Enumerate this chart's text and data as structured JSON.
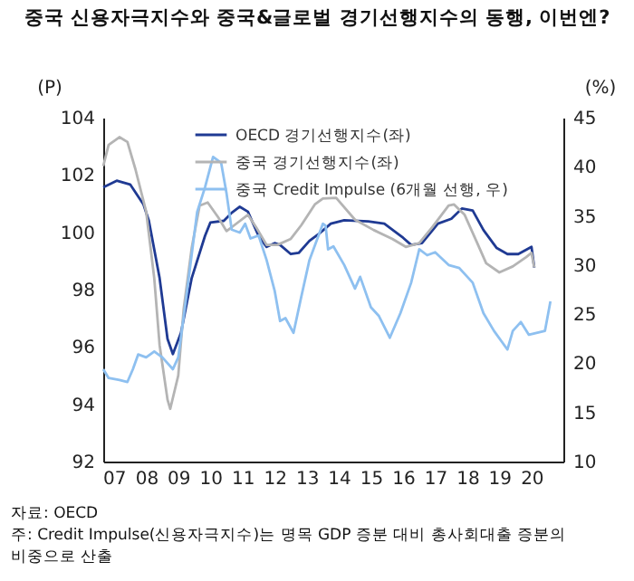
{
  "chart_data": {
    "type": "line",
    "title": "중국 신용자극지수와 중국&글로벌 경기선행지수의 동행, 이번엔?",
    "ylabel": "(P)",
    "y2label": "(%)",
    "xlim": [
      "2007-03-01",
      "2021-06-28"
    ],
    "xticks": [
      {
        "value": "2007-07",
        "label": "07"
      },
      {
        "value": "2008-07",
        "label": "08"
      },
      {
        "value": "2009-07",
        "label": "09"
      },
      {
        "value": "2010-07",
        "label": "10"
      },
      {
        "value": "2011-07",
        "label": "11"
      },
      {
        "value": "2012-07",
        "label": "12"
      },
      {
        "value": "2013-07",
        "label": "13"
      },
      {
        "value": "2014-07",
        "label": "14"
      },
      {
        "value": "2015-07",
        "label": "15"
      },
      {
        "value": "2016-07",
        "label": "16"
      },
      {
        "value": "2017-07",
        "label": "17"
      },
      {
        "value": "2018-07",
        "label": "18"
      },
      {
        "value": "2019-07",
        "label": "19"
      },
      {
        "value": "2020-07",
        "label": "20"
      }
    ],
    "ylim": [
      92,
      104
    ],
    "yticks": [
      92,
      94,
      96,
      98,
      100,
      102,
      104
    ],
    "y2lim": [
      10,
      45
    ],
    "y2ticks": [
      10,
      15,
      20,
      25,
      30,
      35,
      40,
      45
    ],
    "grid": false,
    "legend": "top",
    "line_style": "solid",
    "marker": "none",
    "series": [
      {
        "name": "OECD 경기선행지수(좌)",
        "color": "#1f3a93",
        "axis": "y",
        "x": [
          "2007-03",
          "2007-08",
          "2008-01",
          "2008-06",
          "2008-08",
          "2008-12",
          "2009-03",
          "2009-05",
          "2009-08",
          "2009-12",
          "2010-05",
          "2010-07",
          "2010-12",
          "2011-03",
          "2011-06",
          "2011-09",
          "2012-01",
          "2012-04",
          "2012-07",
          "2012-09",
          "2013-01",
          "2013-04",
          "2013-08",
          "2013-12",
          "2014-04",
          "2014-09",
          "2015-06",
          "2015-12",
          "2016-07",
          "2016-10",
          "2017-02",
          "2017-08",
          "2018-01",
          "2018-05",
          "2018-09",
          "2019-01",
          "2019-06",
          "2019-10",
          "2020-02",
          "2020-05",
          "2020-07",
          "2020-08"
        ],
        "values": [
          101.57,
          101.8,
          101.67,
          100.97,
          100.4,
          98.4,
          96.28,
          95.75,
          96.49,
          98.4,
          99.87,
          100.34,
          100.4,
          100.68,
          100.89,
          100.72,
          99.87,
          99.49,
          99.62,
          99.56,
          99.24,
          99.28,
          99.7,
          99.98,
          100.3,
          100.42,
          100.38,
          100.3,
          99.81,
          99.56,
          99.62,
          100.3,
          100.47,
          100.83,
          100.76,
          100.08,
          99.45,
          99.24,
          99.24,
          99.39,
          99.49,
          98.77
        ]
      },
      {
        "name": "중국 경기선행지수(좌)",
        "color": "#b4b4b4",
        "axis": "y",
        "x": [
          "2007-03",
          "2007-05",
          "2007-09",
          "2007-12",
          "2008-03",
          "2008-07",
          "2008-10",
          "2008-12",
          "2009-03",
          "2009-04",
          "2009-07",
          "2009-09",
          "2009-12",
          "2010-03",
          "2010-06",
          "2010-10",
          "2011-01",
          "2011-04",
          "2011-09",
          "2011-12",
          "2012-04",
          "2012-08",
          "2013-01",
          "2013-05",
          "2013-10",
          "2014-01",
          "2014-06",
          "2015-01",
          "2015-08",
          "2016-03",
          "2016-08",
          "2017-01",
          "2017-06",
          "2017-12",
          "2018-02",
          "2018-06",
          "2018-11",
          "2019-02",
          "2019-07",
          "2019-12",
          "2020-05",
          "2020-07",
          "2020-08"
        ],
        "values": [
          102.31,
          103.05,
          103.32,
          103.15,
          102.2,
          100.72,
          98.4,
          96.06,
          94.16,
          93.84,
          95.0,
          97.33,
          99.45,
          100.93,
          101.04,
          100.51,
          100.04,
          100.25,
          100.61,
          100.19,
          99.56,
          99.56,
          99.77,
          100.25,
          100.97,
          101.18,
          101.2,
          100.44,
          100.08,
          99.77,
          99.49,
          99.62,
          100.19,
          100.93,
          100.97,
          100.61,
          99.56,
          98.92,
          98.6,
          98.81,
          99.13,
          99.28,
          98.77
        ]
      },
      {
        "name": "중국 Credit Impulse (6개월 선행, 우)",
        "color": "#8ec0f0",
        "axis": "y2",
        "x": [
          "2007-03",
          "2007-05",
          "2007-09",
          "2007-12",
          "2008-02",
          "2008-04",
          "2008-07",
          "2008-10",
          "2009-01",
          "2009-05",
          "2009-07",
          "2009-10",
          "2010-02",
          "2010-05",
          "2010-08",
          "2010-11",
          "2011-01",
          "2011-03",
          "2011-06",
          "2011-08",
          "2011-10",
          "2012-01",
          "2012-04",
          "2012-07",
          "2012-09",
          "2012-11",
          "2013-02",
          "2013-05",
          "2013-08",
          "2014-01",
          "2014-02",
          "2014-03",
          "2014-05",
          "2014-09",
          "2015-01",
          "2015-03",
          "2015-07",
          "2015-10",
          "2016-02",
          "2016-06",
          "2016-10",
          "2017-01",
          "2017-04",
          "2017-07",
          "2017-12",
          "2018-04",
          "2018-09",
          "2019-01",
          "2019-05",
          "2019-10",
          "2019-12",
          "2020-03",
          "2020-06",
          "2020-12",
          "2021-02"
        ],
        "values": [
          19.4,
          18.5,
          18.3,
          18.1,
          19.4,
          20.9,
          20.6,
          21.2,
          20.6,
          19.4,
          20.6,
          26.8,
          35.4,
          37.9,
          41.0,
          40.4,
          37.3,
          33.6,
          33.3,
          34.2,
          32.7,
          33.0,
          30.5,
          27.4,
          24.3,
          24.6,
          23.1,
          26.8,
          30.5,
          34.2,
          34.0,
          31.6,
          31.9,
          30.0,
          27.6,
          28.8,
          25.7,
          24.8,
          22.6,
          25.1,
          28.2,
          31.6,
          31.0,
          31.3,
          30.0,
          29.7,
          28.2,
          25.1,
          23.3,
          21.4,
          23.3,
          24.2,
          22.9,
          23.3,
          26.3
        ]
      }
    ],
    "annotations": [
      "자료: OECD",
      "주: Credit Impulse(신용자극지수)는 명목 GDP 증분 대비 총사회대출 증분의 비중으로 산출"
    ]
  }
}
